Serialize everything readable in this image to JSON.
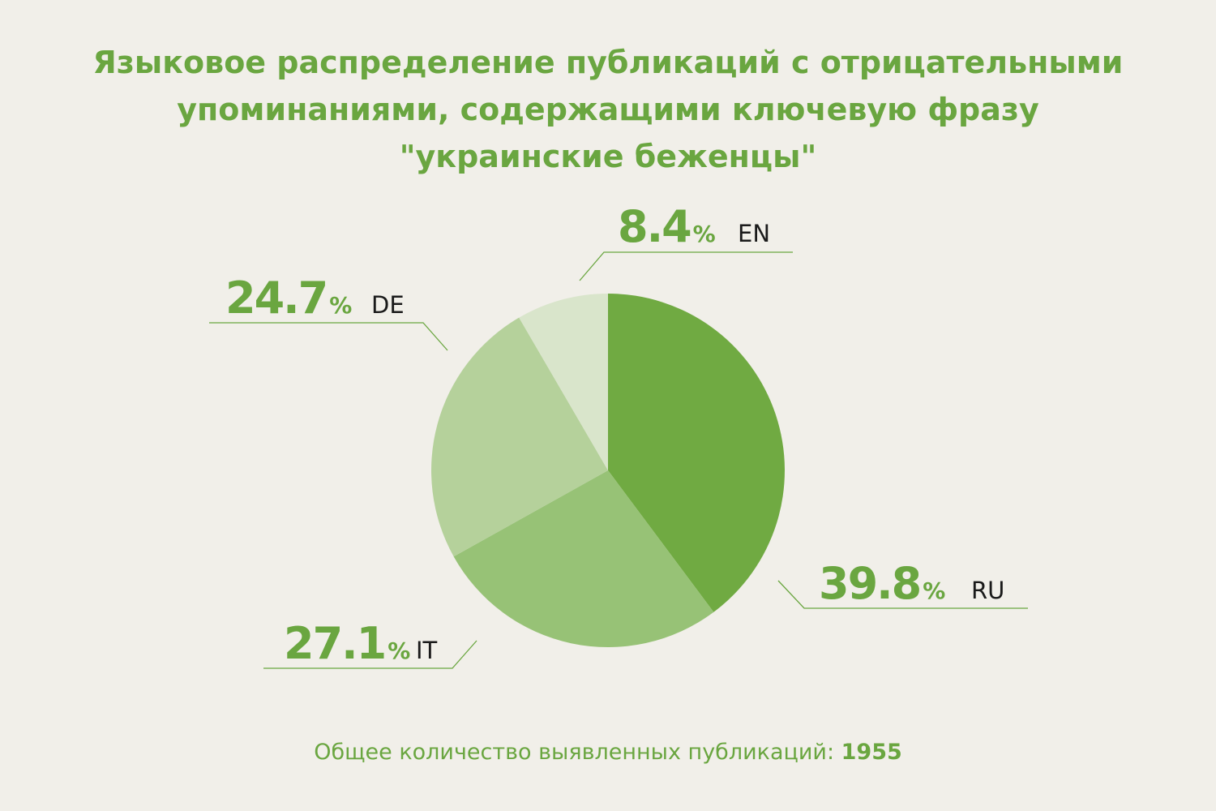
{
  "title_lines": [
    "Языковое распределение публикаций с отрицательными",
    "упоминаниями, содержащими ключевую фразу",
    "\"украинские беженцы\""
  ],
  "chart_data": {
    "type": "pie",
    "start_angle_deg": 0,
    "direction": "clockwise",
    "slices": [
      {
        "label": "RU",
        "value": 39.8,
        "value_text": "39.8",
        "unit": "%",
        "color": "#70aa42"
      },
      {
        "label": "IT",
        "value": 27.1,
        "value_text": "27.1",
        "unit": "%",
        "color": "#97c276"
      },
      {
        "label": "DE",
        "value": 24.7,
        "value_text": "24.7",
        "unit": "%",
        "color": "#b5d19b"
      },
      {
        "label": "EN",
        "value": 8.4,
        "value_text": "8.4",
        "unit": "%",
        "color": "#d9e5cb"
      }
    ]
  },
  "footer": {
    "text": "Общее количество выявленных публикаций: ",
    "total": "1955"
  },
  "colors": {
    "accent": "#6aa640",
    "background": "#f1efe9",
    "label_text": "#1a1a1a"
  }
}
